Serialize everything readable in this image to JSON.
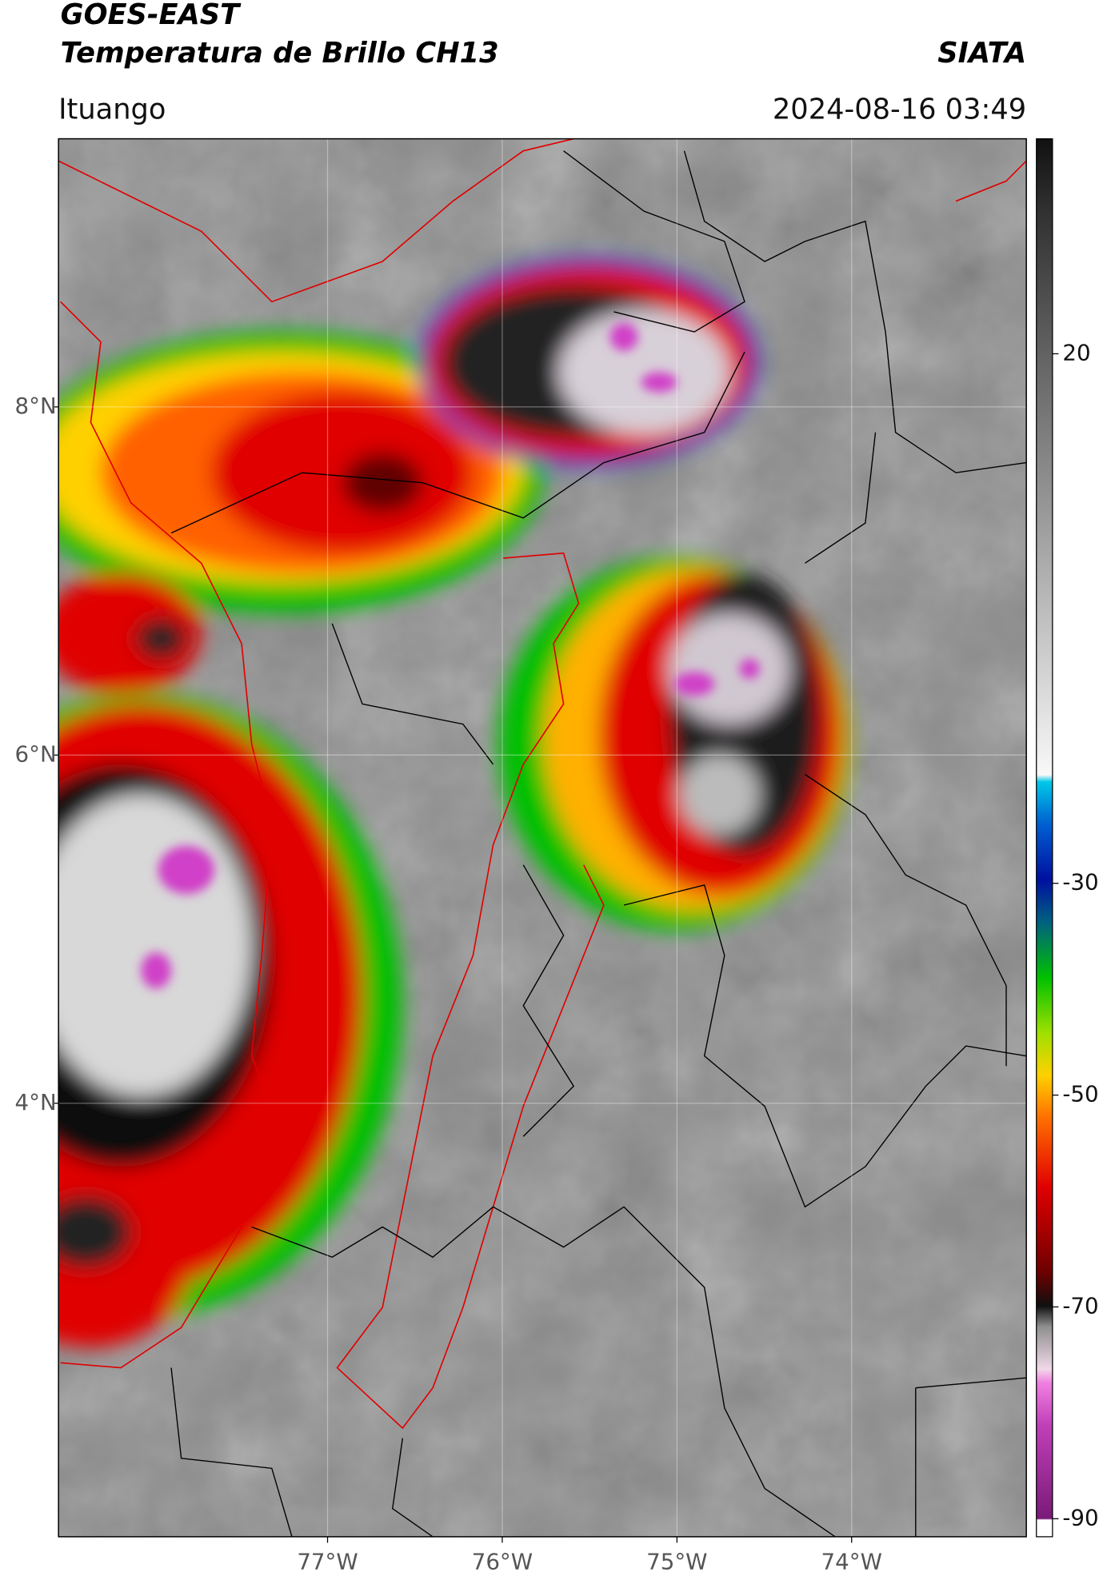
{
  "header": {
    "title": "GOES-EAST",
    "subtitle": "Temperatura de Brillo CH13",
    "agency": "SIATA",
    "location": "Ituango",
    "datetime": "2024-08-16 03:49"
  },
  "map": {
    "xlim": [
      -78.54,
      -73.0
    ],
    "ylim": [
      1.51,
      9.54
    ],
    "xticks": [
      {
        "value": -77,
        "label": "77°W"
      },
      {
        "value": -76,
        "label": "76°W"
      },
      {
        "value": -75,
        "label": "75°W"
      },
      {
        "value": -74,
        "label": "74°W"
      }
    ],
    "yticks": [
      {
        "value": 4,
        "label": "4°N"
      },
      {
        "value": 6,
        "label": "6°N"
      },
      {
        "value": 8,
        "label": "8°N"
      }
    ]
  },
  "colorbar": {
    "lim": [
      -91.7,
      40.3
    ],
    "ticks": [
      20,
      -30,
      -50,
      -70,
      -90
    ]
  }
}
